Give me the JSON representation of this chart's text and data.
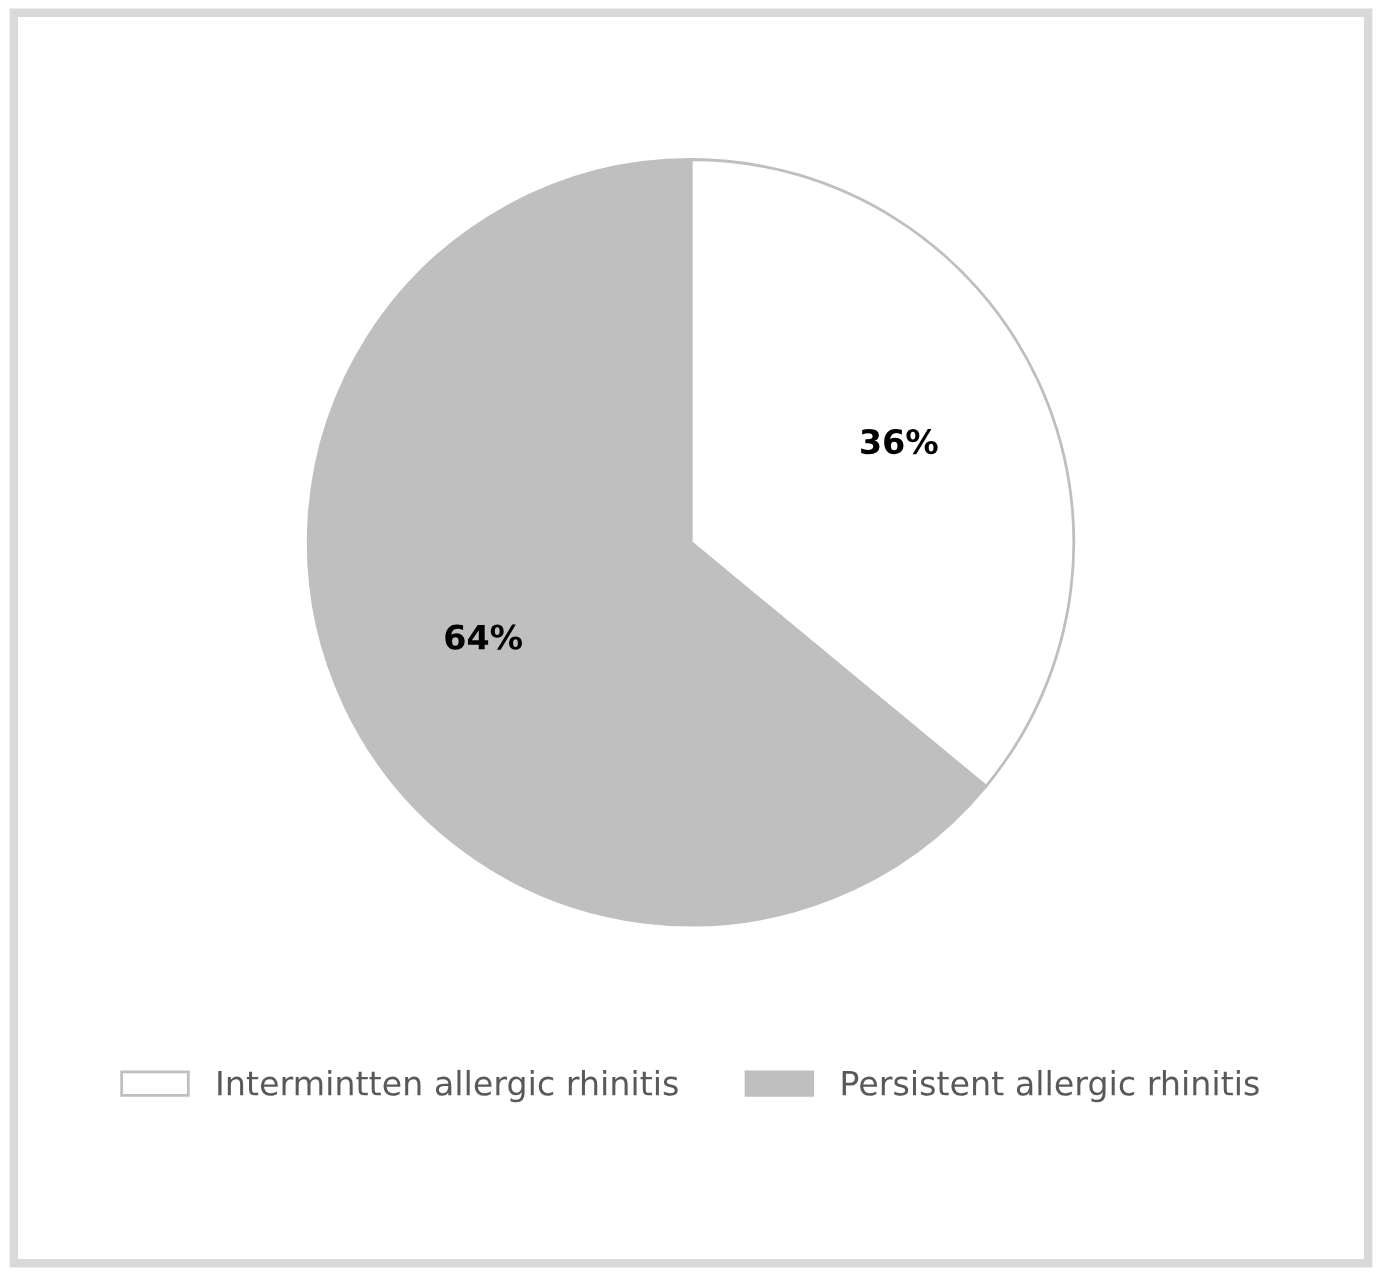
{
  "chart_data": {
    "type": "pie",
    "categories": [
      "Intermintten allergic rhinitis",
      "Persistent allergic rhinitis"
    ],
    "values": [
      36,
      64
    ],
    "colors": [
      "#ffffff",
      "#bfbfbf"
    ],
    "value_labels": [
      "36%",
      "64%"
    ],
    "legend": "bottom"
  }
}
